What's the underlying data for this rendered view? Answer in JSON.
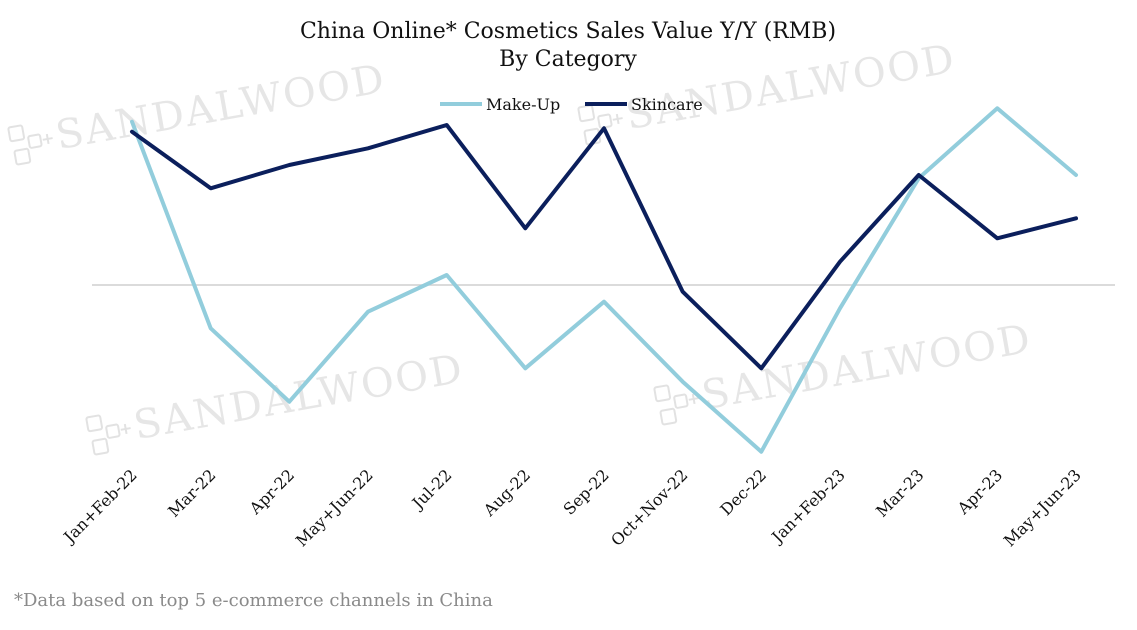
{
  "watermark": {
    "text": "SANDALWOOD",
    "icon": "sandalwood-logo-icon"
  },
  "footnote": "*Data based on top 5 e-commerce channels in China",
  "chart_data": {
    "type": "line",
    "title": "China Online* Cosmetics Sales Value Y/Y (RMB)",
    "subtitle": "By Category",
    "xlabel": "",
    "ylabel": "",
    "ylim": [
      -60,
      60
    ],
    "grid": false,
    "zero_line": true,
    "legend_position": "top-center",
    "categories": [
      "Jan+Feb-22",
      "Mar-22",
      "Apr-22",
      "May+Jun-22",
      "Jul-22",
      "Aug-22",
      "Sep-22",
      "Oct+Nov-22",
      "Dec-22",
      "Jan+Feb-23",
      "Mar-23",
      "Apr-23",
      "May+Jun-23"
    ],
    "series": [
      {
        "name": "Make-Up",
        "color": "#92cddc",
        "values": [
          49,
          -13,
          -35,
          -8,
          3,
          -25,
          -5,
          -29,
          -50,
          -7,
          32,
          53,
          33
        ]
      },
      {
        "name": "Skincare",
        "color": "#0b1f5c",
        "values": [
          46,
          29,
          36,
          41,
          48,
          17,
          47,
          -2,
          -25,
          7,
          33,
          14,
          20
        ]
      }
    ]
  }
}
